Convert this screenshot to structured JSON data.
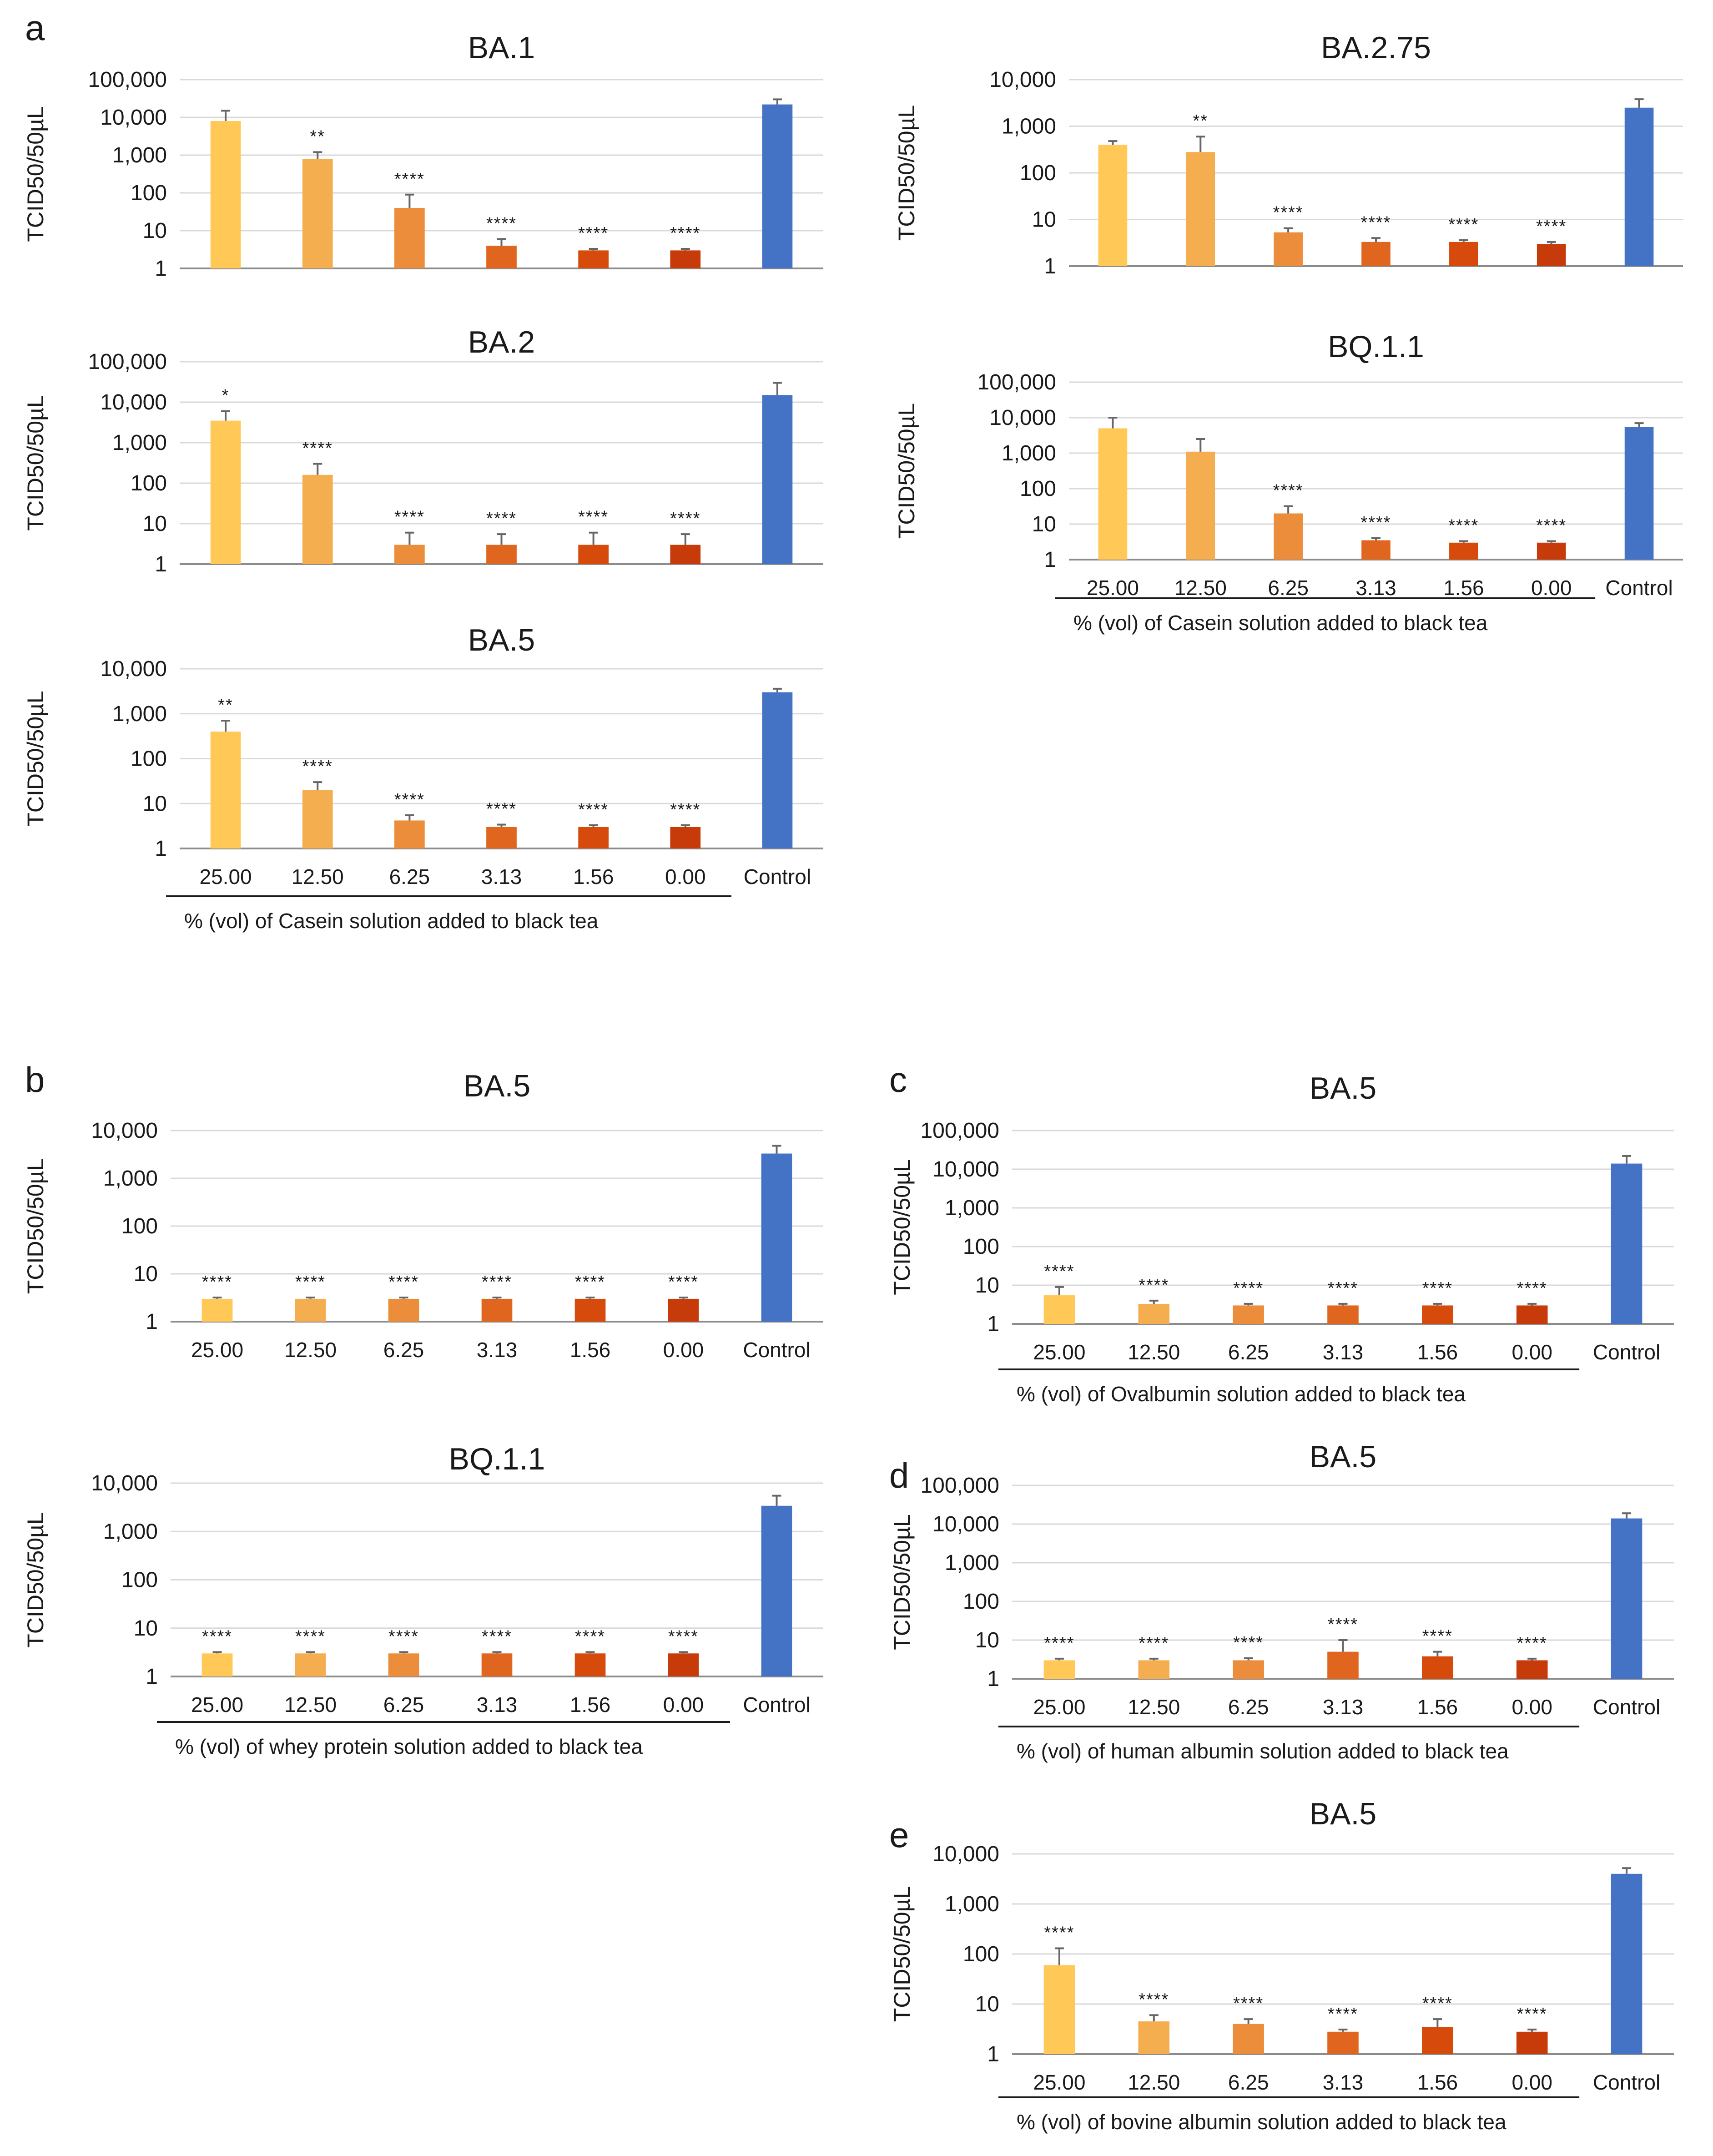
{
  "colors": {
    "bars": [
      "#ffc857",
      "#f5ae4f",
      "#ec8d3c",
      "#e0661f",
      "#d64b0c",
      "#c73a09"
    ],
    "control": "#4472c4",
    "grid": "#d9d9d9",
    "axis": "#8c8c8c"
  },
  "y_axis_label": "TCID50/50µL",
  "panel_labels": [
    "a",
    "b",
    "c",
    "d",
    "e"
  ],
  "chart_data": [
    {
      "type": "bar",
      "title": "BA.1",
      "panel": "a",
      "categories": [
        "25.00",
        "12.50",
        "6.25",
        "3.13",
        "1.56",
        "0.00",
        "Control"
      ],
      "show_tick_labels": false,
      "values": [
        8000,
        800,
        40,
        4,
        3,
        3,
        22000
      ],
      "err_upper": [
        15000,
        1200,
        90,
        6,
        3.3,
        3.3,
        30000
      ],
      "significance": [
        "",
        "**",
        "****",
        "****",
        "****",
        "****",
        ""
      ],
      "yscale": "log",
      "ylim": [
        1,
        100000
      ],
      "yticks": [
        "1",
        "10",
        "100",
        "1,000",
        "10,000",
        "100,000"
      ],
      "ylabel": "TCID50/50µL",
      "xlabel": ""
    },
    {
      "type": "bar",
      "title": "BA.2.75",
      "panel": "a",
      "categories": [
        "25.00",
        "12.50",
        "6.25",
        "3.13",
        "1.56",
        "0.00",
        "Control"
      ],
      "show_tick_labels": false,
      "values": [
        400,
        280,
        5.3,
        3.3,
        3.3,
        3,
        2500
      ],
      "err_upper": [
        480,
        600,
        6.5,
        4,
        3.6,
        3.3,
        3800
      ],
      "significance": [
        "",
        "**",
        "****",
        "****",
        "****",
        "****",
        ""
      ],
      "yscale": "log",
      "ylim": [
        1,
        10000
      ],
      "yticks": [
        "1",
        "10",
        "100",
        "1,000",
        "10,000"
      ],
      "ylabel": "TCID50/50µL",
      "xlabel": ""
    },
    {
      "type": "bar",
      "title": "BA.2",
      "panel": "a",
      "categories": [
        "25.00",
        "12.50",
        "6.25",
        "3.13",
        "1.56",
        "0.00",
        "Control"
      ],
      "show_tick_labels": false,
      "values": [
        3500,
        160,
        3,
        3,
        3,
        3,
        15000
      ],
      "err_upper": [
        6000,
        300,
        6,
        5.5,
        6,
        5.5,
        30000
      ],
      "significance": [
        "*",
        "****",
        "****",
        "****",
        "****",
        "****",
        ""
      ],
      "yscale": "log",
      "ylim": [
        1,
        100000
      ],
      "yticks": [
        "1",
        "10",
        "100",
        "1,000",
        "10,000",
        "100,000"
      ],
      "ylabel": "TCID50/50µL",
      "xlabel": ""
    },
    {
      "type": "bar",
      "title": "BQ.1.1",
      "panel": "a",
      "categories": [
        "25.00",
        "12.50",
        "6.25",
        "3.13",
        "1.56",
        "0.00",
        "Control"
      ],
      "show_tick_labels": true,
      "values": [
        5000,
        1100,
        20,
        3.5,
        3,
        3,
        5500
      ],
      "err_upper": [
        10000,
        2500,
        32,
        4,
        3.3,
        3.3,
        7000
      ],
      "significance": [
        "",
        "",
        "****",
        "****",
        "****",
        "****",
        ""
      ],
      "yscale": "log",
      "ylim": [
        1,
        100000
      ],
      "yticks": [
        "1",
        "10",
        "100",
        "1,000",
        "10,000",
        "100,000"
      ],
      "ylabel": "TCID50/50µL",
      "xlabel": "% (vol) of Casein solution added to black tea"
    },
    {
      "type": "bar",
      "title": "BA.5",
      "panel": "a",
      "categories": [
        "25.00",
        "12.50",
        "6.25",
        "3.13",
        "1.56",
        "0.00",
        "Control"
      ],
      "show_tick_labels": true,
      "values": [
        400,
        20,
        4.2,
        3,
        3,
        3,
        3000
      ],
      "err_upper": [
        700,
        30,
        5.5,
        3.4,
        3.3,
        3.3,
        3600
      ],
      "significance": [
        "**",
        "****",
        "****",
        "****",
        "****",
        "****",
        ""
      ],
      "yscale": "log",
      "ylim": [
        1,
        10000
      ],
      "yticks": [
        "1",
        "10",
        "100",
        "1,000",
        "10,000"
      ],
      "ylabel": "TCID50/50µL",
      "xlabel": "% (vol) of Casein solution added to black tea"
    },
    {
      "type": "bar",
      "title": "BA.5",
      "panel": "b",
      "categories": [
        "25.00",
        "12.50",
        "6.25",
        "3.13",
        "1.56",
        "0.00",
        "Control"
      ],
      "show_tick_labels": true,
      "values": [
        3,
        3,
        3,
        3,
        3,
        3,
        3300
      ],
      "err_upper": [
        3.2,
        3.2,
        3.2,
        3.2,
        3.2,
        3.2,
        4800
      ],
      "significance": [
        "****",
        "****",
        "****",
        "****",
        "****",
        "****",
        ""
      ],
      "yscale": "log",
      "ylim": [
        1,
        10000
      ],
      "yticks": [
        "1",
        "10",
        "100",
        "1,000",
        "10,000"
      ],
      "ylabel": "TCID50/50µL",
      "xlabel": ""
    },
    {
      "type": "bar",
      "title": "BQ.1.1",
      "panel": "b",
      "categories": [
        "25.00",
        "12.50",
        "6.25",
        "3.13",
        "1.56",
        "0.00",
        "Control"
      ],
      "show_tick_labels": true,
      "values": [
        3,
        3,
        3,
        3,
        3,
        3,
        3400
      ],
      "err_upper": [
        3.2,
        3.2,
        3.2,
        3.2,
        3.2,
        3.2,
        5500
      ],
      "significance": [
        "****",
        "****",
        "****",
        "****",
        "****",
        "****",
        ""
      ],
      "yscale": "log",
      "ylim": [
        1,
        10000
      ],
      "yticks": [
        "1",
        "10",
        "100",
        "1,000",
        "10,000"
      ],
      "ylabel": "TCID50/50µL",
      "xlabel": "% (vol) of whey protein solution added to black tea"
    },
    {
      "type": "bar",
      "title": "BA.5",
      "panel": "c",
      "categories": [
        "25.00",
        "12.50",
        "6.25",
        "3.13",
        "1.56",
        "0.00",
        "Control"
      ],
      "show_tick_labels": true,
      "values": [
        5.5,
        3.3,
        3,
        3,
        3,
        3,
        14000
      ],
      "err_upper": [
        9,
        4,
        3.3,
        3.3,
        3.3,
        3.3,
        22000
      ],
      "significance": [
        "****",
        "****",
        "****",
        "****",
        "****",
        "****",
        ""
      ],
      "yscale": "log",
      "ylim": [
        1,
        100000
      ],
      "yticks": [
        "1",
        "10",
        "100",
        "1,000",
        "10,000",
        "100,000"
      ],
      "ylabel": "TCID50/50µL",
      "xlabel": "% (vol) of Ovalbumin solution added to black tea"
    },
    {
      "type": "bar",
      "title": "BA.5",
      "panel": "d",
      "categories": [
        "25.00",
        "12.50",
        "6.25",
        "3.13",
        "1.56",
        "0.00",
        "Control"
      ],
      "show_tick_labels": true,
      "values": [
        3,
        3,
        3,
        5,
        3.8,
        3,
        14000
      ],
      "err_upper": [
        3.3,
        3.3,
        3.4,
        10,
        5,
        3.3,
        19000
      ],
      "significance": [
        "****",
        "****",
        "****",
        "****",
        "****",
        "****",
        ""
      ],
      "yscale": "log",
      "ylim": [
        1,
        100000
      ],
      "yticks": [
        "1",
        "10",
        "100",
        "1,000",
        "10,000",
        "100,000"
      ],
      "ylabel": "TCID50/50µL",
      "xlabel": "% (vol) of human albumin solution added to black tea"
    },
    {
      "type": "bar",
      "title": "BA.5",
      "panel": "e",
      "categories": [
        "25.00",
        "12.50",
        "6.25",
        "3.13",
        "1.56",
        "0.00",
        "Control"
      ],
      "show_tick_labels": true,
      "values": [
        60,
        4.5,
        4,
        2.8,
        3.5,
        2.8,
        4000
      ],
      "err_upper": [
        130,
        6,
        5,
        3.1,
        5,
        3.1,
        5200
      ],
      "significance": [
        "****",
        "****",
        "****",
        "****",
        "****",
        "****",
        ""
      ],
      "yscale": "log",
      "ylim": [
        1,
        10000
      ],
      "yticks": [
        "1",
        "10",
        "100",
        "1,000",
        "10,000"
      ],
      "ylabel": "TCID50/50µL",
      "xlabel": "% (vol) of bovine albumin solution added to black tea"
    }
  ]
}
